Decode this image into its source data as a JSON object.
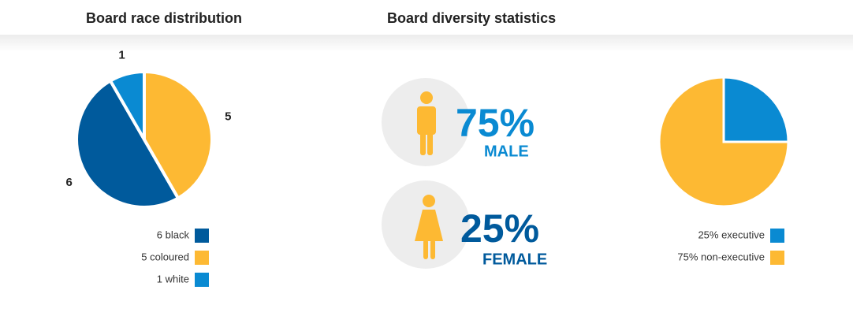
{
  "headings": [
    "Board race distribution",
    "Board diversity statistics"
  ],
  "chart_data": [
    {
      "type": "pie",
      "categories": [
        "6 black",
        "5 coloured",
        "1 white"
      ],
      "values": [
        6,
        5,
        1
      ],
      "colors": [
        "#005a9c",
        "#fdb933",
        "#0a8ad2"
      ],
      "startangle": 330,
      "counterclock": true,
      "data_labels": true
    },
    {
      "type": "pie",
      "categories": [
        "25% executive",
        "75% non-executive"
      ],
      "values": [
        25,
        75
      ],
      "colors": [
        "#0a8ad2",
        "#fdb933"
      ],
      "startangle": 0,
      "counterclock": false,
      "data_labels": false
    }
  ],
  "stats": [
    {
      "figure": "75%",
      "label": "MALE"
    },
    {
      "figure": "25%",
      "label": "FEMALE"
    }
  ]
}
